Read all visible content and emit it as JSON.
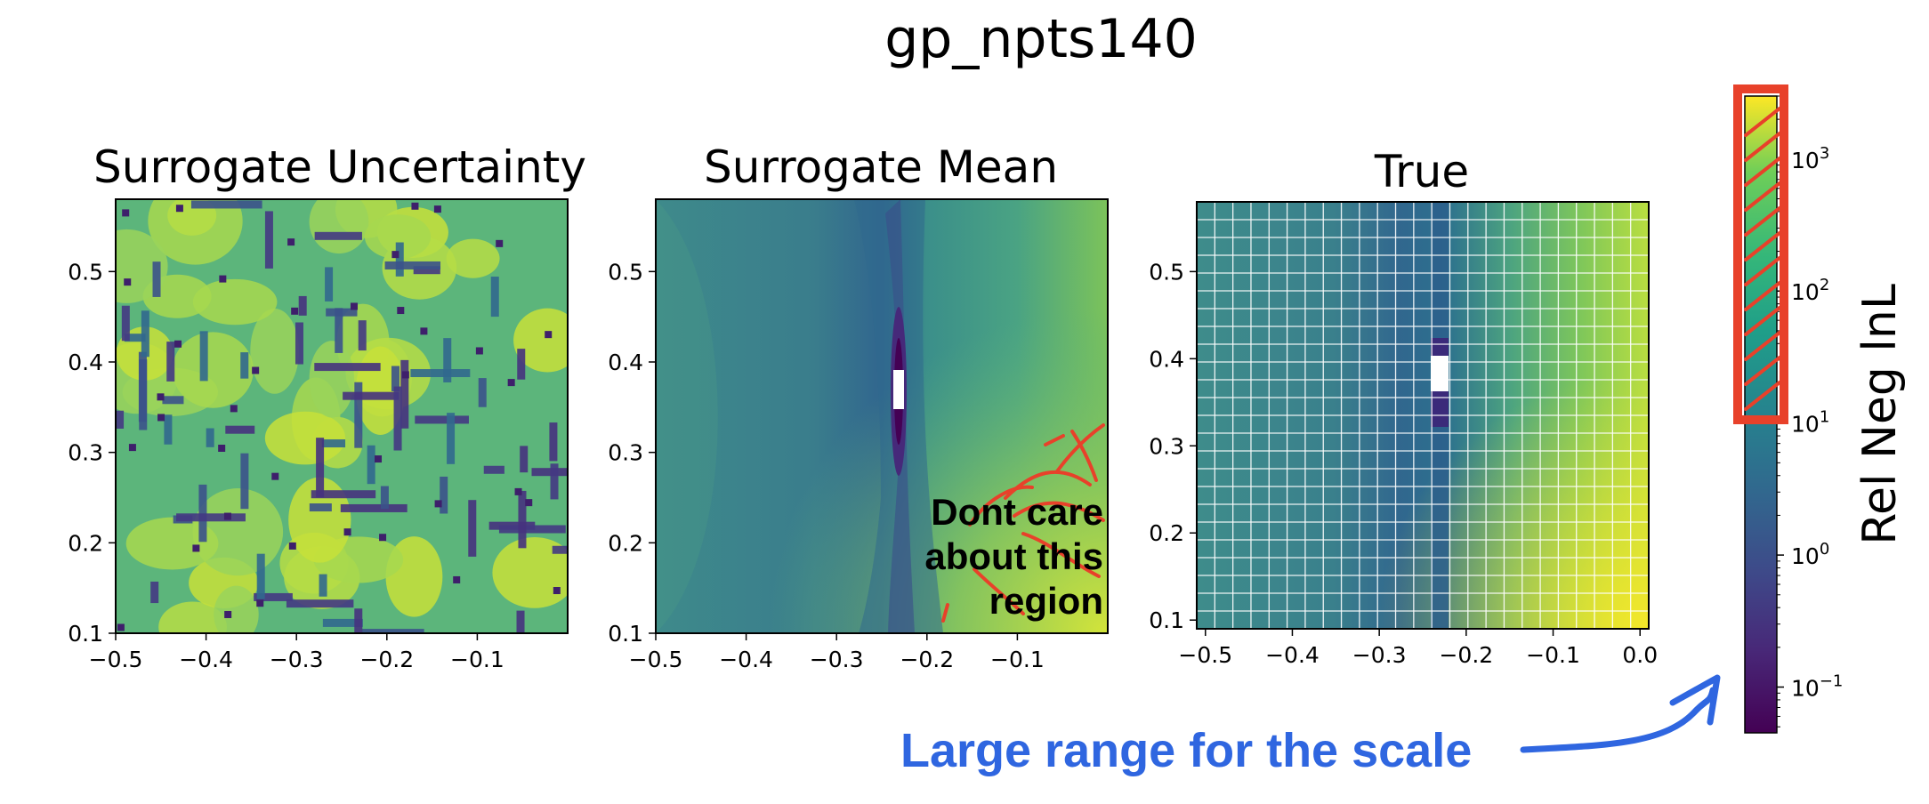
{
  "figure": {
    "suptitle": "gp_npts140"
  },
  "chart_data": [
    {
      "type": "heatmap",
      "title": "Surrogate Uncertainty",
      "xlabel": "",
      "ylabel": "",
      "xlim": [
        -0.5,
        0.0
      ],
      "ylim": [
        0.1,
        0.58
      ],
      "xticks": [
        -0.5,
        -0.4,
        -0.3,
        -0.2,
        -0.1
      ],
      "xtick_labels": [
        "−0.5",
        "−0.4",
        "−0.3",
        "−0.2",
        "−0.1"
      ],
      "yticks": [
        0.1,
        0.2,
        0.3,
        0.4,
        0.5
      ],
      "ytick_labels": [
        "0.1",
        "0.2",
        "0.3",
        "0.4",
        "0.5"
      ],
      "colormap": "viridis"
    },
    {
      "type": "heatmap",
      "title": "Surrogate Mean",
      "xlabel": "",
      "ylabel": "",
      "xlim": [
        -0.5,
        0.0
      ],
      "ylim": [
        0.1,
        0.58
      ],
      "xticks": [
        -0.5,
        -0.4,
        -0.3,
        -0.2,
        -0.1
      ],
      "xtick_labels": [
        "−0.5",
        "−0.4",
        "−0.3",
        "−0.2",
        "−0.1"
      ],
      "yticks": [
        0.1,
        0.2,
        0.3,
        0.4,
        0.5
      ],
      "ytick_labels": [
        "0.1",
        "0.2",
        "0.3",
        "0.4",
        "0.5"
      ],
      "colormap": "viridis",
      "minimum_at": {
        "x": -0.225,
        "y": 0.38
      }
    },
    {
      "type": "heatmap",
      "title": "True",
      "xlabel": "",
      "ylabel": "",
      "xlim": [
        -0.51,
        0.01
      ],
      "ylim": [
        0.09,
        0.58
      ],
      "xticks": [
        -0.5,
        -0.4,
        -0.3,
        -0.2,
        -0.1,
        0.0
      ],
      "xtick_labels": [
        "−0.5",
        "−0.4",
        "−0.3",
        "−0.2",
        "−0.1",
        "0.0"
      ],
      "yticks": [
        0.1,
        0.2,
        0.3,
        0.4,
        0.5
      ],
      "ytick_labels": [
        "0.1",
        "0.2",
        "0.3",
        "0.4",
        "0.5"
      ],
      "colormap": "viridis",
      "grid_cells": [
        25,
        24
      ],
      "minimum_at": {
        "x": -0.228,
        "y": 0.38
      }
    }
  ],
  "colorbar": {
    "label": "Rel Neg lnL",
    "scale": "log",
    "range": [
      0.045,
      3000
    ],
    "ticks": [
      0.1,
      1,
      10,
      100,
      1000
    ],
    "tick_bases": [
      "10",
      "10",
      "10",
      "10",
      "10"
    ],
    "tick_exponents": [
      "−1",
      "0",
      "1",
      "2",
      "3"
    ],
    "colormap": "viridis"
  },
  "annotations": {
    "region_note_lines": [
      "Dont care",
      "about this",
      "region"
    ],
    "scale_note": "Large range for the scale",
    "colors": {
      "red": "#e8412a",
      "blue": "#2f66e0"
    }
  }
}
